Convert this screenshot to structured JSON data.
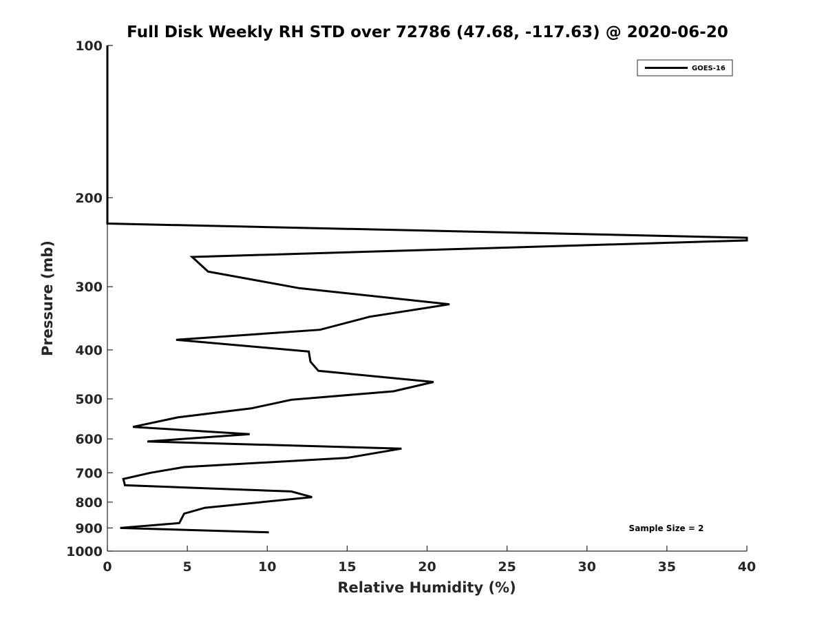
{
  "chart_data": {
    "type": "line",
    "title": "Full Disk Weekly RH STD over 72786 (47.68, -117.63) @ 2020-06-20",
    "xlabel": "Relative Humidity (%)",
    "ylabel": "Pressure (mb)",
    "xlim": [
      0,
      40
    ],
    "ylim": [
      100,
      1000
    ],
    "yscale": "log",
    "y_inverted": true,
    "x_ticks": [
      0,
      5,
      10,
      15,
      20,
      25,
      30,
      35,
      40
    ],
    "y_ticks": [
      100,
      200,
      300,
      400,
      500,
      600,
      700,
      800,
      900,
      1000
    ],
    "legend_position": "top-right",
    "series": [
      {
        "name": "GOES-16",
        "color": "#000000",
        "points": [
          {
            "x": 0,
            "y": 100
          },
          {
            "x": 0,
            "y": 200
          },
          {
            "x": 0,
            "y": 225
          },
          {
            "x": 40,
            "y": 240
          },
          {
            "x": 40,
            "y": 243
          },
          {
            "x": 5.3,
            "y": 262
          },
          {
            "x": 6.3,
            "y": 280
          },
          {
            "x": 12,
            "y": 302
          },
          {
            "x": 21.4,
            "y": 325
          },
          {
            "x": 16.4,
            "y": 344
          },
          {
            "x": 13.3,
            "y": 365
          },
          {
            "x": 4.3,
            "y": 382
          },
          {
            "x": 12.6,
            "y": 403
          },
          {
            "x": 12.7,
            "y": 422
          },
          {
            "x": 13.2,
            "y": 440
          },
          {
            "x": 20.4,
            "y": 463
          },
          {
            "x": 17.9,
            "y": 483
          },
          {
            "x": 11.5,
            "y": 502
          },
          {
            "x": 9,
            "y": 522
          },
          {
            "x": 4.4,
            "y": 544
          },
          {
            "x": 1.6,
            "y": 568
          },
          {
            "x": 8.9,
            "y": 587
          },
          {
            "x": 2.5,
            "y": 607
          },
          {
            "x": 18.4,
            "y": 627
          },
          {
            "x": 15,
            "y": 654
          },
          {
            "x": 4.8,
            "y": 682
          },
          {
            "x": 2.7,
            "y": 700
          },
          {
            "x": 1,
            "y": 720
          },
          {
            "x": 1.1,
            "y": 741
          },
          {
            "x": 11.5,
            "y": 762
          },
          {
            "x": 12.8,
            "y": 782
          },
          {
            "x": 6.1,
            "y": 821
          },
          {
            "x": 4.8,
            "y": 843
          },
          {
            "x": 4.5,
            "y": 880
          },
          {
            "x": 0.8,
            "y": 900
          },
          {
            "x": 10.1,
            "y": 918
          }
        ]
      }
    ],
    "annotations": [
      "Sample Size = 2"
    ]
  }
}
